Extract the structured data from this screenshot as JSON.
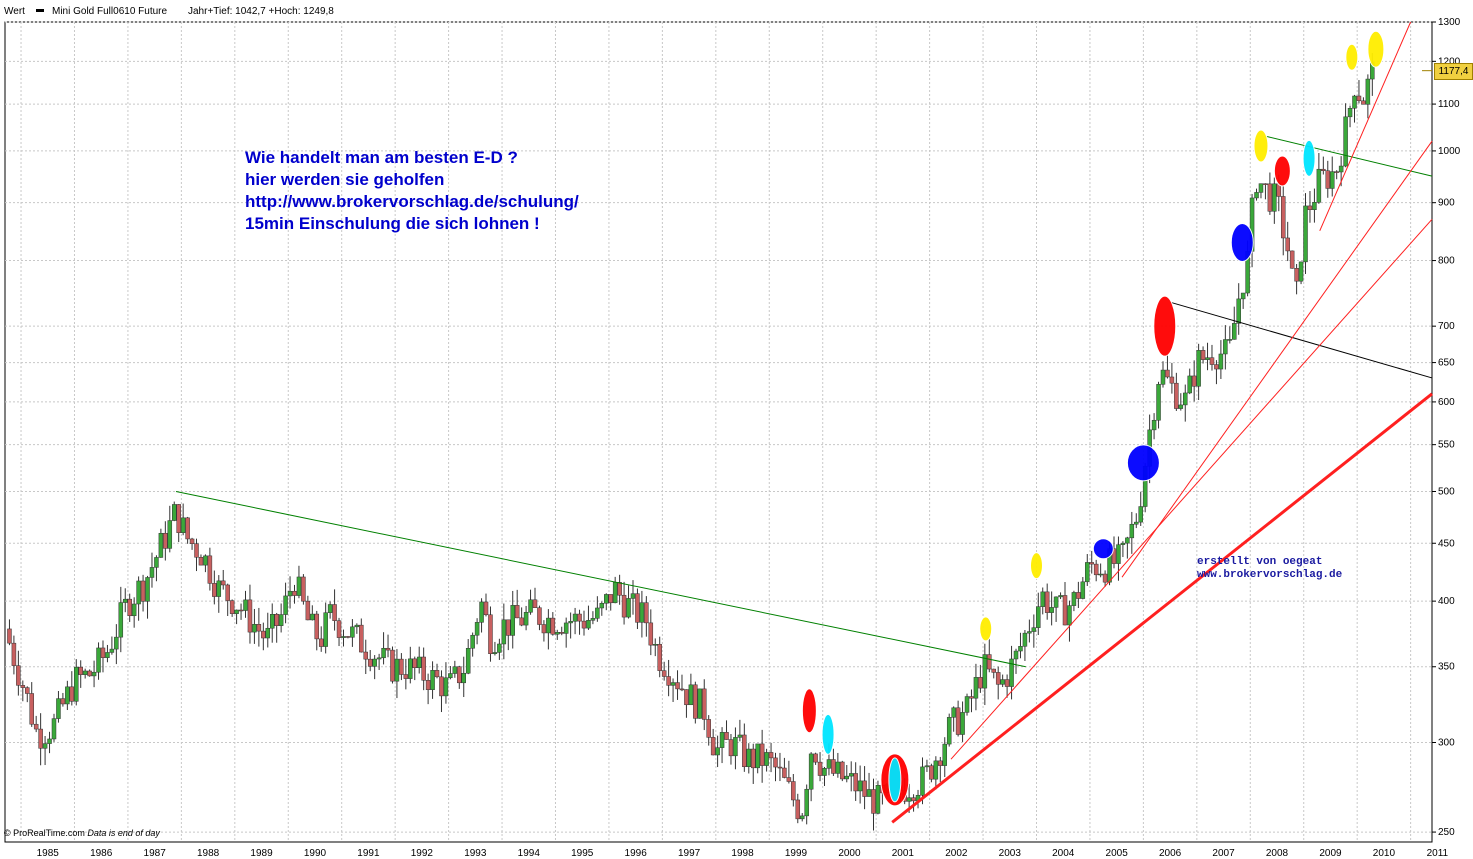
{
  "header": {
    "label": "Wert",
    "instrument": "Mini Gold Full0610 Future",
    "range_text": "Jahr+Tief: 1042,7 +Hoch: 1249,8"
  },
  "annotation_lines": [
    "Wie handelt man am besten  E-D ?",
    "hier werden sie geholfen",
    "http://www.brokervorschlag.de/schulung/",
    "15min Einschulung die sich lohnen !"
  ],
  "signature_lines": [
    "erstellt von oegeat",
    "www.brokervorschlag.de"
  ],
  "footer": {
    "source": "ProRealTime.com",
    "note": "Data is end of day"
  },
  "colors": {
    "up_candle": "#3aa83a",
    "down_candle": "#c86060",
    "grid": "#c8c8c8",
    "trend_red": "#ff2020",
    "trend_green": "#008000",
    "trend_black": "#000000",
    "annotation_text": "#0000cc"
  },
  "chart_data": {
    "type": "candlestick",
    "scale": "log",
    "ylim": [
      245,
      1300
    ],
    "xlim": [
      1984.7,
      2011.4
    ],
    "last_value": "1177,4",
    "y_ticks": [
      "250",
      "300",
      "350",
      "400",
      "450",
      "500",
      "550",
      "600",
      "650",
      "700",
      "800",
      "900",
      "1000",
      "1100",
      "1200",
      "1300"
    ],
    "x_ticks": [
      "1985",
      "1986",
      "1987",
      "1988",
      "1989",
      "1990",
      "1991",
      "1992",
      "1993",
      "1994",
      "1995",
      "1996",
      "1997",
      "1998",
      "1999",
      "2000",
      "2001",
      "2002",
      "2003",
      "2004",
      "2005",
      "2006",
      "2007",
      "2008",
      "2009",
      "2010",
      "2011"
    ],
    "price_path": [
      [
        1984.7,
        378
      ],
      [
        1985.1,
        330
      ],
      [
        1985.3,
        305
      ],
      [
        1985.6,
        310
      ],
      [
        1986.0,
        340
      ],
      [
        1986.3,
        345
      ],
      [
        1986.6,
        360
      ],
      [
        1987.0,
        400
      ],
      [
        1987.3,
        415
      ],
      [
        1987.6,
        445
      ],
      [
        1987.9,
        480
      ],
      [
        1988.1,
        455
      ],
      [
        1988.4,
        440
      ],
      [
        1988.7,
        410
      ],
      [
        1989.0,
        400
      ],
      [
        1989.3,
        385
      ],
      [
        1989.6,
        370
      ],
      [
        1989.9,
        390
      ],
      [
        1990.1,
        420
      ],
      [
        1990.4,
        380
      ],
      [
        1990.6,
        370
      ],
      [
        1990.8,
        390
      ],
      [
        1991.0,
        380
      ],
      [
        1991.3,
        370
      ],
      [
        1991.6,
        360
      ],
      [
        1991.9,
        350
      ],
      [
        1992.2,
        350
      ],
      [
        1992.5,
        345
      ],
      [
        1992.8,
        340
      ],
      [
        1993.0,
        335
      ],
      [
        1993.3,
        350
      ],
      [
        1993.6,
        400
      ],
      [
        1993.8,
        370
      ],
      [
        1994.0,
        380
      ],
      [
        1994.3,
        385
      ],
      [
        1994.6,
        390
      ],
      [
        1994.9,
        385
      ],
      [
        1995.2,
        385
      ],
      [
        1995.5,
        385
      ],
      [
        1995.8,
        387
      ],
      [
        1996.1,
        410
      ],
      [
        1996.4,
        395
      ],
      [
        1996.7,
        385
      ],
      [
        1996.9,
        360
      ],
      [
        1997.2,
        345
      ],
      [
        1997.5,
        330
      ],
      [
        1997.8,
        320
      ],
      [
        1998.0,
        295
      ],
      [
        1998.3,
        300
      ],
      [
        1998.6,
        290
      ],
      [
        1998.9,
        290
      ],
      [
        1999.1,
        285
      ],
      [
        1999.4,
        270
      ],
      [
        1999.6,
        260
      ],
      [
        1999.8,
        300
      ],
      [
        2000.0,
        285
      ],
      [
        2000.3,
        280
      ],
      [
        2000.6,
        275
      ],
      [
        2000.9,
        268
      ],
      [
        2001.1,
        265
      ],
      [
        2001.3,
        270
      ],
      [
        2001.6,
        275
      ],
      [
        2001.9,
        278
      ],
      [
        2002.1,
        290
      ],
      [
        2002.4,
        310
      ],
      [
        2002.7,
        320
      ],
      [
        2003.0,
        350
      ],
      [
        2003.3,
        335
      ],
      [
        2003.6,
        355
      ],
      [
        2003.9,
        385
      ],
      [
        2004.1,
        405
      ],
      [
        2004.4,
        390
      ],
      [
        2004.7,
        400
      ],
      [
        2005.0,
        430
      ],
      [
        2005.3,
        430
      ],
      [
        2005.6,
        435
      ],
      [
        2005.9,
        480
      ],
      [
        2006.1,
        560
      ],
      [
        2006.3,
        640
      ],
      [
        2006.5,
        620
      ],
      [
        2006.8,
        600
      ],
      [
        2007.0,
        650
      ],
      [
        2007.3,
        665
      ],
      [
        2007.6,
        660
      ],
      [
        2007.8,
        750
      ],
      [
        2007.95,
        800
      ],
      [
        2008.1,
        950
      ],
      [
        2008.3,
        920
      ],
      [
        2008.5,
        900
      ],
      [
        2008.7,
        820
      ],
      [
        2008.85,
        730
      ],
      [
        2009.0,
        870
      ],
      [
        2009.3,
        940
      ],
      [
        2009.6,
        960
      ],
      [
        2009.8,
        1050
      ],
      [
        2009.95,
        1150
      ],
      [
        2010.1,
        1110
      ],
      [
        2010.3,
        1177.4
      ]
    ],
    "trendlines": [
      {
        "color": "trend_green",
        "width": 1,
        "points": [
          [
            1987.9,
            500
          ],
          [
            2003.8,
            350
          ]
        ]
      },
      {
        "color": "trend_green",
        "width": 1,
        "points": [
          [
            2008.3,
            1030
          ],
          [
            2011.4,
            950
          ]
        ]
      },
      {
        "color": "trend_black",
        "width": 1,
        "points": [
          [
            2006.5,
            735
          ],
          [
            2011.4,
            630
          ]
        ]
      },
      {
        "color": "trend_red",
        "width": 3,
        "points": [
          [
            2001.3,
            255
          ],
          [
            2011.4,
            610
          ]
        ]
      },
      {
        "color": "trend_red",
        "width": 1,
        "points": [
          [
            2002.4,
            290
          ],
          [
            2011.4,
            870
          ]
        ]
      },
      {
        "color": "trend_red",
        "width": 1,
        "points": [
          [
            2005.6,
            420
          ],
          [
            2011.4,
            1020
          ]
        ]
      },
      {
        "color": "trend_red",
        "width": 1,
        "points": [
          [
            2009.3,
            850
          ],
          [
            2011.0,
            1300
          ]
        ]
      }
    ],
    "markers": [
      {
        "x": 1999.75,
        "y": 320,
        "rx": 7,
        "ry": 22,
        "color": "#ff0000"
      },
      {
        "x": 2000.1,
        "y": 305,
        "rx": 6,
        "ry": 20,
        "color": "#00e5ff"
      },
      {
        "x": 2001.35,
        "y": 278,
        "rx": 14,
        "ry": 26,
        "color": "#ff0000"
      },
      {
        "x": 2001.35,
        "y": 278,
        "rx": 6,
        "ry": 22,
        "color": "#00e5ff"
      },
      {
        "x": 2003.05,
        "y": 378,
        "rx": 6,
        "ry": 12,
        "color": "#ffee00"
      },
      {
        "x": 2004.0,
        "y": 430,
        "rx": 6,
        "ry": 13,
        "color": "#ffee00"
      },
      {
        "x": 2005.25,
        "y": 445,
        "rx": 10,
        "ry": 10,
        "color": "#0000ff"
      },
      {
        "x": 2006.0,
        "y": 530,
        "rx": 16,
        "ry": 18,
        "color": "#0000ff"
      },
      {
        "x": 2006.4,
        "y": 700,
        "rx": 11,
        "ry": 30,
        "color": "#ff0000"
      },
      {
        "x": 2007.85,
        "y": 830,
        "rx": 11,
        "ry": 19,
        "color": "#0000ff"
      },
      {
        "x": 2008.2,
        "y": 1010,
        "rx": 7,
        "ry": 16,
        "color": "#ffee00"
      },
      {
        "x": 2008.6,
        "y": 960,
        "rx": 8,
        "ry": 15,
        "color": "#ff0000"
      },
      {
        "x": 2009.1,
        "y": 985,
        "rx": 6,
        "ry": 18,
        "color": "#00e5ff"
      },
      {
        "x": 2009.9,
        "y": 1210,
        "rx": 6,
        "ry": 13,
        "color": "#ffee00"
      },
      {
        "x": 2010.35,
        "y": 1230,
        "rx": 8,
        "ry": 18,
        "color": "#ffee00"
      }
    ]
  }
}
